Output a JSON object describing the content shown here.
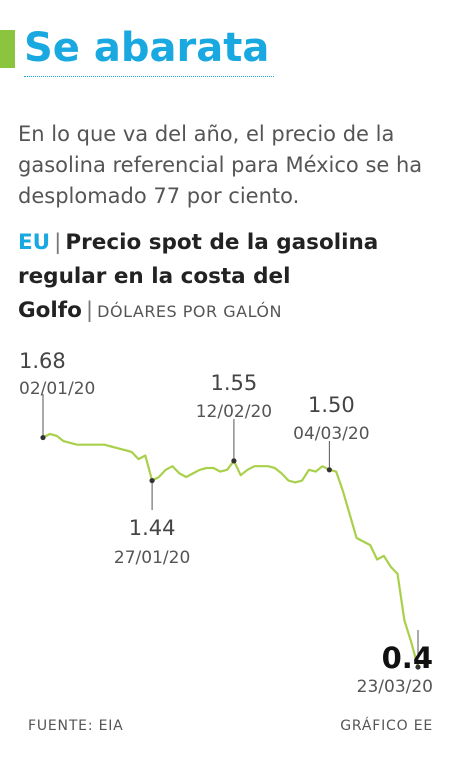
{
  "header": {
    "title": "Se abarata",
    "subtitle": "En lo que va del año, el precio de la gasolina referencial para México se ha desplomado 77 por ciento."
  },
  "colors": {
    "accent_green": "#8bc53f",
    "title_blue": "#19a9e0",
    "line": "#a9d04b"
  },
  "chart_data": {
    "type": "line",
    "region": "EU",
    "title": "Precio spot de la gasolina regular en la costa del Golfo",
    "unit": "DÓLARES POR GALÓN",
    "ylim": [
      0.3,
      1.75
    ],
    "grid": false,
    "series": [
      {
        "x": [
          "02/01/20",
          "03/01/20",
          "06/01/20",
          "07/01/20",
          "08/01/20",
          "09/01/20",
          "10/01/20",
          "13/01/20",
          "14/01/20",
          "15/01/20",
          "16/01/20",
          "17/01/20",
          "21/01/20",
          "22/01/20",
          "23/01/20",
          "24/01/20",
          "27/01/20",
          "28/01/20",
          "29/01/20",
          "30/01/20",
          "31/01/20",
          "03/02/20",
          "04/02/20",
          "05/02/20",
          "06/02/20",
          "07/02/20",
          "10/02/20",
          "11/02/20",
          "12/02/20",
          "13/02/20",
          "14/02/20",
          "18/02/20",
          "19/02/20",
          "20/02/20",
          "21/02/20",
          "24/02/20",
          "25/02/20",
          "26/02/20",
          "27/02/20",
          "28/02/20",
          "02/03/20",
          "03/03/20",
          "04/03/20",
          "05/03/20",
          "06/03/20",
          "09/03/20",
          "10/03/20",
          "11/03/20",
          "12/03/20",
          "13/03/20",
          "16/03/20",
          "17/03/20",
          "18/03/20",
          "19/03/20",
          "20/03/20",
          "23/03/20"
        ],
        "y": [
          1.68,
          1.7,
          1.69,
          1.66,
          1.65,
          1.64,
          1.64,
          1.64,
          1.64,
          1.64,
          1.63,
          1.62,
          1.61,
          1.6,
          1.56,
          1.58,
          1.44,
          1.46,
          1.5,
          1.52,
          1.48,
          1.46,
          1.48,
          1.5,
          1.51,
          1.51,
          1.49,
          1.5,
          1.55,
          1.47,
          1.5,
          1.52,
          1.52,
          1.52,
          1.51,
          1.48,
          1.44,
          1.43,
          1.44,
          1.5,
          1.49,
          1.52,
          1.5,
          1.49,
          1.38,
          1.25,
          1.12,
          1.1,
          1.08,
          1.0,
          1.02,
          0.96,
          0.92,
          0.66,
          0.54,
          0.4
        ]
      }
    ],
    "annotations": [
      {
        "index": 0,
        "value": "1.68",
        "date": "02/01/20"
      },
      {
        "index": 16,
        "value": "1.44",
        "date": "27/01/20"
      },
      {
        "index": 28,
        "value": "1.55",
        "date": "12/02/20"
      },
      {
        "index": 42,
        "value": "1.50",
        "date": "04/03/20"
      },
      {
        "index": 55,
        "value": "0.4",
        "date": "23/03/20"
      }
    ]
  },
  "footer": {
    "source": "FUENTE: EIA",
    "credit": "GRÁFICO EE"
  }
}
